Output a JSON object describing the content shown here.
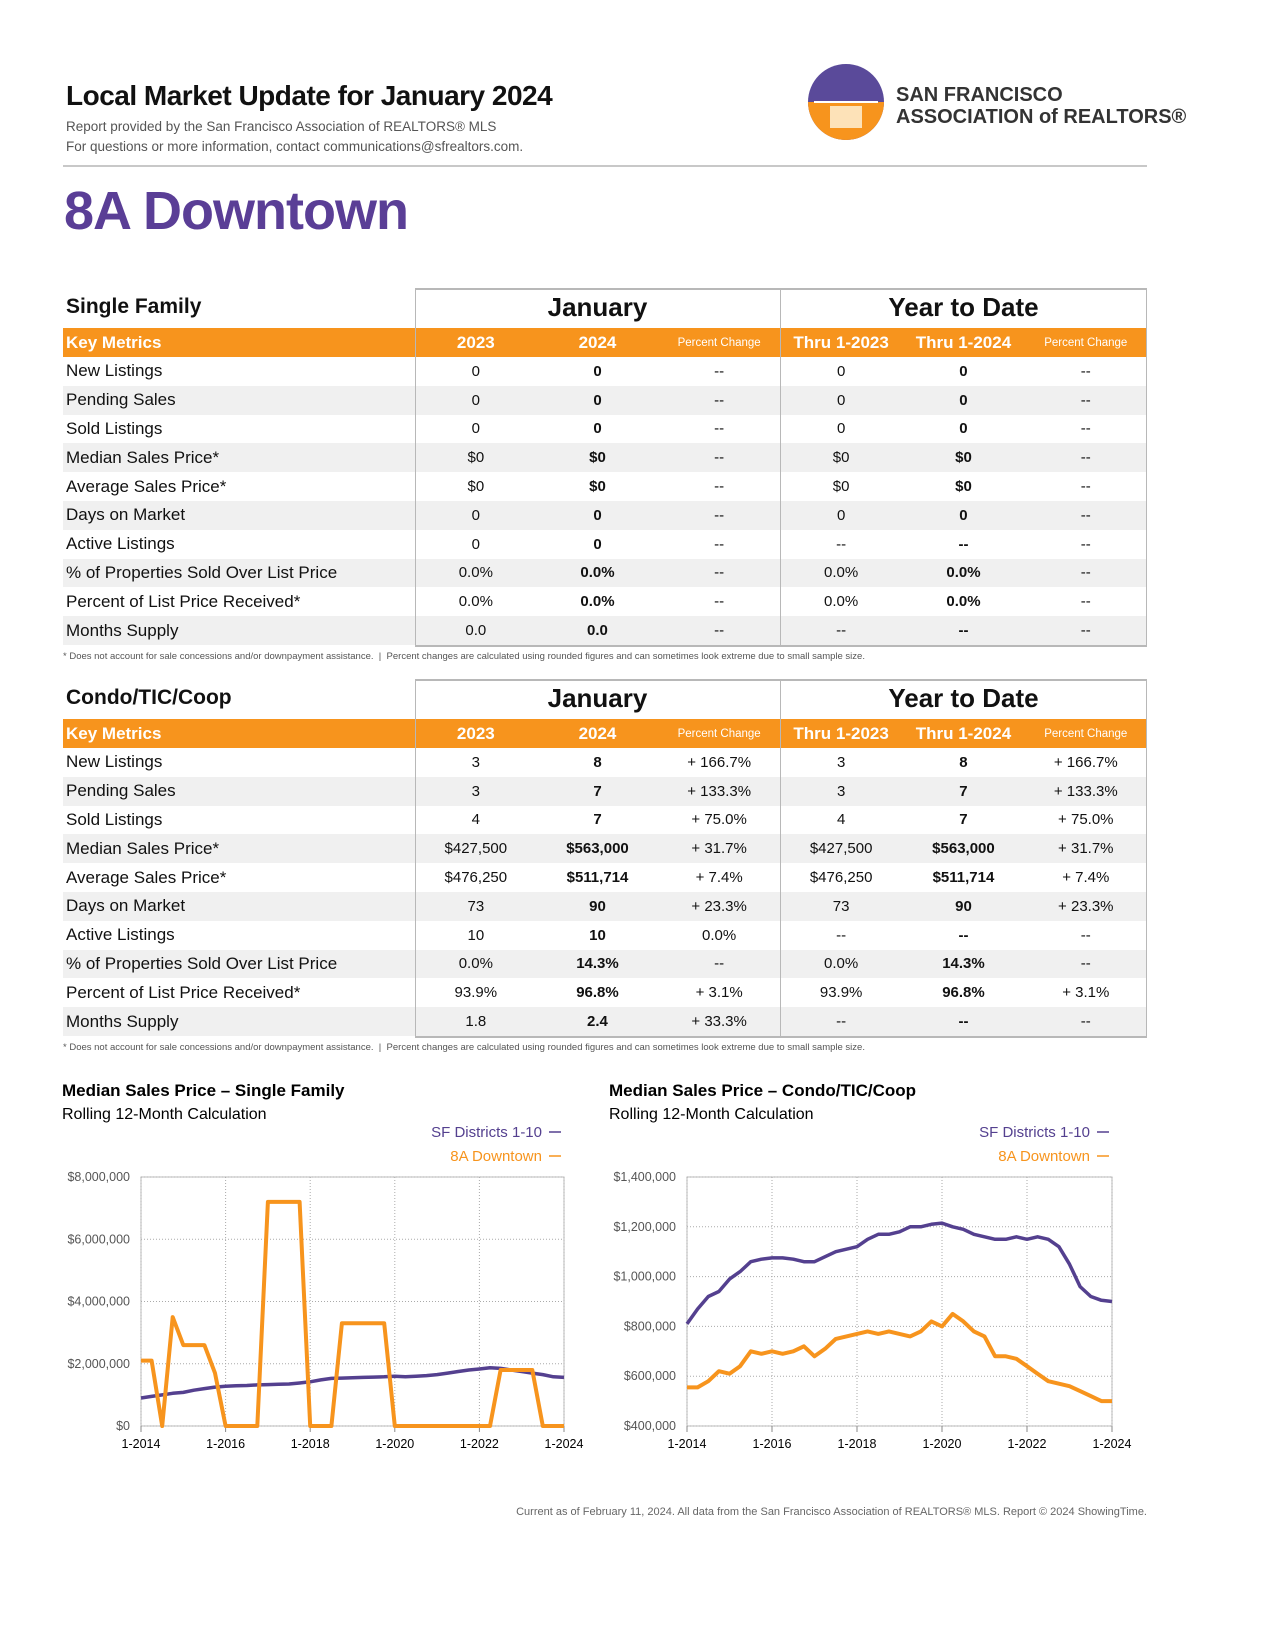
{
  "header": {
    "title": "Local Market Update for January 2024",
    "line1": "Report provided by the San Francisco Association of REALTORS® MLS",
    "line2": "For questions or more information, contact communications@sfrealtors.com.",
    "logo_line1": "SAN FRANCISCO",
    "logo_line2": "ASSOCIATION of REALTORS®"
  },
  "area": "8A Downtown",
  "tables": [
    {
      "section": "Single Family",
      "groups": [
        "January",
        "Year to Date"
      ],
      "columns": [
        "Key Metrics",
        "2023",
        "2024",
        "Percent Change",
        "Thru 1-2023",
        "Thru 1-2024",
        "Percent Change"
      ],
      "rows": [
        {
          "label": "New Listings",
          "cells": [
            "0",
            "0",
            "--",
            "0",
            "0",
            "--"
          ]
        },
        {
          "label": "Pending Sales",
          "cells": [
            "0",
            "0",
            "--",
            "0",
            "0",
            "--"
          ]
        },
        {
          "label": "Sold Listings",
          "cells": [
            "0",
            "0",
            "--",
            "0",
            "0",
            "--"
          ]
        },
        {
          "label": "Median Sales Price*",
          "cells": [
            "$0",
            "$0",
            "--",
            "$0",
            "$0",
            "--"
          ]
        },
        {
          "label": "Average Sales Price*",
          "cells": [
            "$0",
            "$0",
            "--",
            "$0",
            "$0",
            "--"
          ]
        },
        {
          "label": "Days on Market",
          "cells": [
            "0",
            "0",
            "--",
            "0",
            "0",
            "--"
          ]
        },
        {
          "label": "Active Listings",
          "cells": [
            "0",
            "0",
            "--",
            "--",
            "--",
            "--"
          ]
        },
        {
          "label": "% of Properties Sold Over List Price",
          "cells": [
            "0.0%",
            "0.0%",
            "--",
            "0.0%",
            "0.0%",
            "--"
          ]
        },
        {
          "label": "Percent of List Price Received*",
          "cells": [
            "0.0%",
            "0.0%",
            "--",
            "0.0%",
            "0.0%",
            "--"
          ]
        },
        {
          "label": "Months Supply",
          "cells": [
            "0.0",
            "0.0",
            "--",
            "--",
            "--",
            "--"
          ]
        }
      ],
      "footnote": "* Does not account for sale concessions and/or downpayment assistance.  |  Percent changes are calculated using rounded figures and can sometimes look extreme due to small sample size."
    },
    {
      "section": "Condo/TIC/Coop",
      "groups": [
        "January",
        "Year to Date"
      ],
      "columns": [
        "Key Metrics",
        "2023",
        "2024",
        "Percent Change",
        "Thru 1-2023",
        "Thru 1-2024",
        "Percent Change"
      ],
      "rows": [
        {
          "label": "New Listings",
          "cells": [
            "3",
            "8",
            "+ 166.7%",
            "3",
            "8",
            "+ 166.7%"
          ]
        },
        {
          "label": "Pending Sales",
          "cells": [
            "3",
            "7",
            "+ 133.3%",
            "3",
            "7",
            "+ 133.3%"
          ]
        },
        {
          "label": "Sold Listings",
          "cells": [
            "4",
            "7",
            "+ 75.0%",
            "4",
            "7",
            "+ 75.0%"
          ]
        },
        {
          "label": "Median Sales Price*",
          "cells": [
            "$427,500",
            "$563,000",
            "+ 31.7%",
            "$427,500",
            "$563,000",
            "+ 31.7%"
          ]
        },
        {
          "label": "Average Sales Price*",
          "cells": [
            "$476,250",
            "$511,714",
            "+ 7.4%",
            "$476,250",
            "$511,714",
            "+ 7.4%"
          ]
        },
        {
          "label": "Days on Market",
          "cells": [
            "73",
            "90",
            "+ 23.3%",
            "73",
            "90",
            "+ 23.3%"
          ]
        },
        {
          "label": "Active Listings",
          "cells": [
            "10",
            "10",
            "0.0%",
            "--",
            "--",
            "--"
          ]
        },
        {
          "label": "% of Properties Sold Over List Price",
          "cells": [
            "0.0%",
            "14.3%",
            "--",
            "0.0%",
            "14.3%",
            "--"
          ]
        },
        {
          "label": "Percent of List Price Received*",
          "cells": [
            "93.9%",
            "96.8%",
            "+ 3.1%",
            "93.9%",
            "96.8%",
            "+ 3.1%"
          ]
        },
        {
          "label": "Months Supply",
          "cells": [
            "1.8",
            "2.4",
            "+ 33.3%",
            "--",
            "--",
            "--"
          ]
        }
      ],
      "footnote": "* Does not account for sale concessions and/or downpayment assistance.  |  Percent changes are calculated using rounded figures and can sometimes look extreme due to small sample size."
    }
  ],
  "chart_data": [
    {
      "type": "line",
      "title": "Median Sales Price – Single Family",
      "subtitle": "Rolling 12-Month Calculation",
      "x": [
        "1-2014",
        "4-2014",
        "7-2014",
        "10-2014",
        "1-2015",
        "4-2015",
        "7-2015",
        "10-2015",
        "1-2016",
        "4-2016",
        "7-2016",
        "10-2016",
        "1-2017",
        "4-2017",
        "7-2017",
        "10-2017",
        "1-2018",
        "4-2018",
        "7-2018",
        "10-2018",
        "1-2019",
        "4-2019",
        "7-2019",
        "10-2019",
        "1-2020",
        "4-2020",
        "7-2020",
        "10-2020",
        "1-2021",
        "4-2021",
        "7-2021",
        "10-2021",
        "1-2022",
        "4-2022",
        "7-2022",
        "10-2022",
        "1-2023",
        "4-2023",
        "7-2023",
        "10-2023",
        "1-2024"
      ],
      "series": [
        {
          "name": "SF Districts 1-10",
          "color": "#54408f",
          "values": [
            900000,
            950000,
            1000000,
            1050000,
            1080000,
            1150000,
            1200000,
            1250000,
            1280000,
            1290000,
            1300000,
            1320000,
            1330000,
            1340000,
            1350000,
            1380000,
            1420000,
            1480000,
            1530000,
            1540000,
            1550000,
            1560000,
            1570000,
            1580000,
            1600000,
            1580000,
            1600000,
            1620000,
            1650000,
            1700000,
            1750000,
            1800000,
            1830000,
            1870000,
            1850000,
            1800000,
            1750000,
            1700000,
            1650000,
            1580000,
            1560000
          ]
        },
        {
          "name": "8A Downtown",
          "color": "#f7941d",
          "values": [
            2100000,
            2100000,
            0,
            3500000,
            2600000,
            2600000,
            2600000,
            1700000,
            0,
            0,
            0,
            0,
            7200000,
            7200000,
            7200000,
            7200000,
            0,
            0,
            0,
            3300000,
            3300000,
            3300000,
            3300000,
            3300000,
            0,
            0,
            0,
            0,
            0,
            0,
            0,
            0,
            0,
            0,
            1800000,
            1800000,
            1800000,
            1800000,
            0,
            0,
            0
          ]
        }
      ],
      "ylim": [
        0,
        8000000
      ],
      "yticks": [
        {
          "value": 0,
          "label": "$0"
        },
        {
          "value": 2000000,
          "label": "$2,000,000"
        },
        {
          "value": 4000000,
          "label": "$4,000,000"
        },
        {
          "value": 6000000,
          "label": "$6,000,000"
        },
        {
          "value": 8000000,
          "label": "$8,000,000"
        }
      ],
      "xticks": [
        "1-2014",
        "1-2016",
        "1-2018",
        "1-2020",
        "1-2022",
        "1-2024"
      ],
      "grid": true
    },
    {
      "type": "line",
      "title": "Median Sales Price – Condo/TIC/Coop",
      "subtitle": "Rolling 12-Month Calculation",
      "x": [
        "1-2014",
        "4-2014",
        "7-2014",
        "10-2014",
        "1-2015",
        "4-2015",
        "7-2015",
        "10-2015",
        "1-2016",
        "4-2016",
        "7-2016",
        "10-2016",
        "1-2017",
        "4-2017",
        "7-2017",
        "10-2017",
        "1-2018",
        "4-2018",
        "7-2018",
        "10-2018",
        "1-2019",
        "4-2019",
        "7-2019",
        "10-2019",
        "1-2020",
        "4-2020",
        "7-2020",
        "10-2020",
        "1-2021",
        "4-2021",
        "7-2021",
        "10-2021",
        "1-2022",
        "4-2022",
        "7-2022",
        "10-2022",
        "1-2023",
        "4-2023",
        "7-2023",
        "10-2023",
        "1-2024"
      ],
      "series": [
        {
          "name": "SF Districts 1-10",
          "color": "#54408f",
          "values": [
            810000,
            870000,
            920000,
            940000,
            990000,
            1020000,
            1060000,
            1070000,
            1075000,
            1075000,
            1070000,
            1060000,
            1060000,
            1080000,
            1100000,
            1110000,
            1120000,
            1150000,
            1170000,
            1170000,
            1180000,
            1200000,
            1200000,
            1210000,
            1215000,
            1200000,
            1190000,
            1170000,
            1160000,
            1150000,
            1150000,
            1160000,
            1150000,
            1160000,
            1150000,
            1120000,
            1050000,
            960000,
            920000,
            905000,
            900000
          ]
        },
        {
          "name": "8A Downtown",
          "color": "#f7941d",
          "values": [
            555000,
            555000,
            580000,
            620000,
            610000,
            640000,
            700000,
            690000,
            700000,
            690000,
            700000,
            720000,
            680000,
            710000,
            750000,
            760000,
            770000,
            780000,
            770000,
            780000,
            770000,
            760000,
            780000,
            820000,
            800000,
            850000,
            820000,
            780000,
            760000,
            680000,
            680000,
            670000,
            640000,
            610000,
            580000,
            570000,
            560000,
            540000,
            520000,
            500000,
            500000
          ]
        }
      ],
      "ylim": [
        400000,
        1400000
      ],
      "yticks": [
        {
          "value": 400000,
          "label": "$400,000"
        },
        {
          "value": 600000,
          "label": "$600,000"
        },
        {
          "value": 800000,
          "label": "$800,000"
        },
        {
          "value": 1000000,
          "label": "$1,000,000"
        },
        {
          "value": 1200000,
          "label": "$1,200,000"
        },
        {
          "value": 1400000,
          "label": "$1,400,000"
        }
      ],
      "xticks": [
        "1-2014",
        "1-2016",
        "1-2018",
        "1-2020",
        "1-2022",
        "1-2024"
      ],
      "grid": true
    }
  ],
  "footer": "Current as of February 11, 2024. All data from the San Francisco Association of REALTORS® MLS. Report © 2024 ShowingTime."
}
